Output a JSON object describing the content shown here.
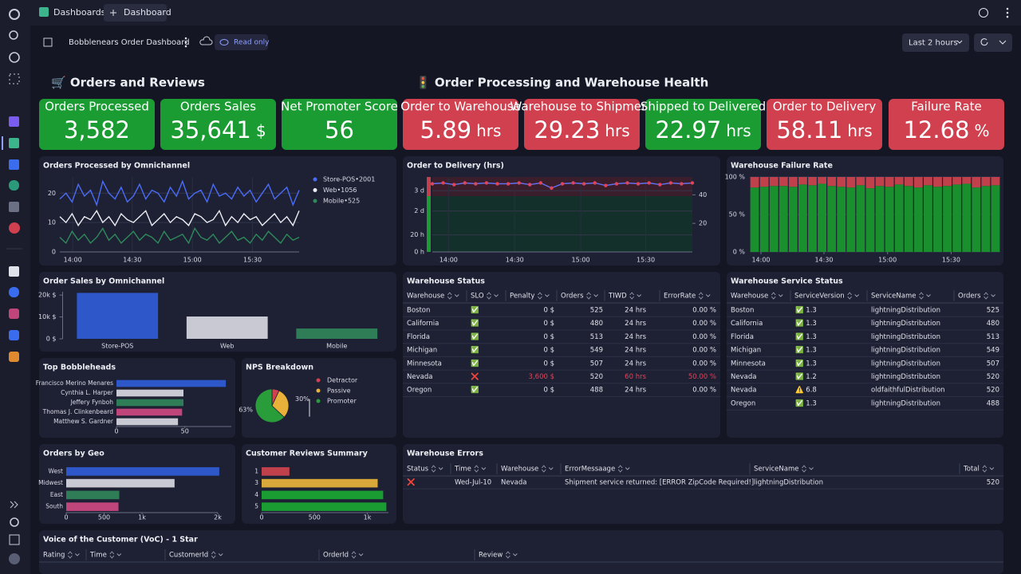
{
  "topbar": {
    "tabs": [
      "Dashboards",
      "Dashboard"
    ]
  },
  "toolbar": {
    "title": "Bobblenears Order Dashboard",
    "mode": "Read only",
    "timeframe": "Last 2 hours"
  },
  "sections": [
    "🛒 Orders and Reviews",
    "🚦 Order Processing and Warehouse Health"
  ],
  "kpis": [
    {
      "label": "Orders Processed",
      "value": "3,582",
      "color": "#1a9c33"
    },
    {
      "label": "Orders Sales",
      "value": "35,641",
      "unit": "$",
      "color": "#1a9c33"
    },
    {
      "label": "Net Promoter Score",
      "value": "56",
      "color": "#1a9c33"
    },
    {
      "label": "Order to Warehouse",
      "value": "5.89",
      "unit": "hrs",
      "color": "#d0404f"
    },
    {
      "label": "Warehouse to Shipment",
      "value": "29.23",
      "unit": "hrs",
      "color": "#d0404f"
    },
    {
      "label": "Shipped to Delivered",
      "value": "22.97",
      "unit": "hrs",
      "color": "#1a9c33"
    },
    {
      "label": "Order to Delivery",
      "value": "58.11",
      "unit": "hrs",
      "color": "#d0404f"
    },
    {
      "label": "Failure Rate",
      "value": "12.68",
      "unit": "%",
      "color": "#d0404f"
    }
  ],
  "charts": [
    {
      "type": "line",
      "title": "Orders Processed by Omnichannel",
      "grid": true,
      "legend": "right",
      "ylim": [
        0,
        25.5
      ],
      "yticks": [
        0,
        10,
        20
      ],
      "xlim": [
        0,
        39
      ],
      "xticks": [
        {
          "value": 2.1,
          "label": "14:00"
        },
        {
          "value": 11.8,
          "label": "14:30"
        },
        {
          "value": 21.6,
          "label": "15:00"
        },
        {
          "value": 31.4,
          "label": "15:30"
        }
      ],
      "series": [
        {
          "name": "Store-POS•2001",
          "color": "#4a6cf7",
          "values": [
            18,
            20,
            17,
            23,
            19,
            21,
            16,
            24,
            20,
            18,
            22,
            17,
            19,
            23,
            18,
            21,
            20,
            17,
            22,
            19,
            24,
            18,
            20,
            21,
            17,
            23,
            19,
            20,
            18,
            22,
            19,
            21,
            17,
            20,
            23,
            18,
            20,
            22,
            16,
            21
          ]
        },
        {
          "name": "Web•1056",
          "color": "#eceef4",
          "values": [
            12,
            10,
            13,
            9,
            12,
            11,
            14,
            10,
            12,
            9,
            13,
            11,
            10,
            12,
            14,
            9,
            11,
            13,
            10,
            12,
            11,
            9,
            13,
            12,
            10,
            11,
            14,
            9,
            12,
            10,
            13,
            11,
            12,
            9,
            11,
            13,
            10,
            12,
            9,
            14
          ]
        },
        {
          "name": "Mobile•525",
          "color": "#2e8a5a",
          "values": [
            5,
            3,
            7,
            4,
            6,
            3,
            5,
            8,
            4,
            6,
            3,
            5,
            7,
            4,
            6,
            5,
            3,
            7,
            4,
            5,
            6,
            3,
            8,
            5,
            4,
            6,
            3,
            5,
            7,
            4,
            5,
            3,
            6,
            4,
            7,
            5,
            3,
            6,
            4,
            5
          ]
        }
      ]
    },
    {
      "type": "line",
      "title": "Order to Delivery (hrs)",
      "grid": true,
      "ylim": [
        0,
        88
      ],
      "yticks": [
        {
          "value": 0,
          "label": "0 h"
        },
        {
          "value": 20,
          "label": "20 h"
        },
        {
          "value": 48,
          "label": "2 d"
        },
        {
          "value": 72,
          "label": "3 d"
        }
      ],
      "y2lim": [
        0,
        52.5
      ],
      "y2ticks": [
        20,
        40
      ],
      "xlim": [
        0,
        24
      ],
      "xticks": [
        {
          "value": 1.5,
          "label": "14:00"
        },
        {
          "value": 7.6,
          "label": "14:30"
        },
        {
          "value": 13.7,
          "label": "15:00"
        },
        {
          "value": 19.7,
          "label": "15:30"
        }
      ],
      "series": [
        {
          "color": "#6070f0",
          "marker_color": "#e0445a",
          "values": [
            80,
            81,
            79,
            81,
            80,
            81,
            80,
            80,
            81,
            79,
            81,
            75,
            80,
            81,
            80,
            81,
            78,
            80,
            81,
            80,
            81,
            79,
            81,
            80,
            81
          ]
        }
      ]
    },
    {
      "type": "stacked_bar",
      "title": "Warehouse Failure Rate",
      "grid": true,
      "ylim": [
        0,
        100
      ],
      "yticks": [
        {
          "value": 0,
          "label": "0 %"
        },
        {
          "value": 50,
          "label": "50 %"
        },
        {
          "value": 100,
          "label": "100 %"
        }
      ],
      "xlim": [
        -0.5,
        25.5
      ],
      "xticks": [
        {
          "value": 0.66,
          "label": "14:00"
        },
        {
          "value": 7.2,
          "label": "14:30"
        },
        {
          "value": 13.8,
          "label": "15:00"
        },
        {
          "value": 20.4,
          "label": "15:30"
        }
      ],
      "series": [
        {
          "color": "#1a8f2e",
          "values": [
            86,
            87,
            88,
            88,
            87,
            90,
            89,
            91,
            88,
            87,
            86,
            89,
            85,
            88,
            87,
            90,
            88,
            86,
            89,
            87,
            88,
            90,
            91,
            86,
            88,
            89
          ]
        },
        {
          "color": "#c0404c",
          "values": [
            14,
            13,
            12,
            12,
            13,
            10,
            11,
            9,
            12,
            13,
            14,
            11,
            15,
            12,
            13,
            10,
            12,
            14,
            11,
            13,
            12,
            10,
            9,
            14,
            12,
            11
          ]
        }
      ]
    },
    {
      "type": "bar",
      "title": "Order Sales by Omnichannel",
      "categories": [
        "Store-POS",
        "Web",
        "Mobile"
      ],
      "values": [
        21000,
        10200,
        4700
      ],
      "colors": [
        "#2e57c9",
        "#c8c9d2",
        "#2e7d57"
      ],
      "ylim": [
        0,
        21500
      ],
      "yticks": [
        {
          "value": 0,
          "label": "0 $"
        },
        {
          "value": 10000,
          "label": "10k $"
        },
        {
          "value": 20000,
          "label": "20k $"
        }
      ]
    },
    {
      "type": "hbar",
      "title": "Top Bobbleheads",
      "categories": [
        "Francisco Merino Menares",
        "Cynthia L. Harper",
        "Jeffery Fynboh",
        "Thomas J. Clinkenbeard",
        "Matthew S. Gardner"
      ],
      "values": [
        80,
        49,
        49,
        48,
        45
      ],
      "colors": [
        "#2e57c9",
        "#c8c9d2",
        "#2e7d57",
        "#c0457a",
        "#c8c9d2"
      ],
      "xlim": [
        0,
        84
      ],
      "xticks": [
        0,
        50
      ]
    },
    {
      "type": "pie",
      "title": "NPS Breakdown",
      "categories": [
        "Detractor",
        "Passive",
        "Promoter"
      ],
      "values": [
        7,
        30,
        63
      ],
      "value_labels": [
        null,
        "30%",
        "63%"
      ],
      "colors": [
        "#d0404f",
        "#e8b23a",
        "#2a9d3b"
      ],
      "legend": "right"
    },
    {
      "type": "hbar",
      "title": "Orders by Geo",
      "categories": [
        "West",
        "Midwest",
        "East",
        "South"
      ],
      "values": [
        2020,
        1430,
        700,
        690
      ],
      "colors": [
        "#2e57c9",
        "#c8c9d2",
        "#2e7d57",
        "#c0457a"
      ],
      "xlim": [
        0,
        2000
      ],
      "xticks": [
        0,
        500,
        {
          "value": 1000,
          "label": "1k"
        },
        {
          "value": 2000,
          "label": "2k"
        }
      ]
    },
    {
      "type": "hbar",
      "title": "Customer Reviews Summary",
      "categories": [
        "1",
        "3",
        "4",
        "5"
      ],
      "values": [
        263,
        1098,
        1150,
        1180
      ],
      "colors": [
        "#c0404c",
        "#d8a83a",
        "#1a9c33",
        "#1a9c33"
      ],
      "xlim": [
        0,
        1200
      ],
      "xticks": [
        0,
        500,
        {
          "value": 1000,
          "label": "1k"
        }
      ]
    }
  ],
  "tables": [
    {
      "title": "Warehouse Status",
      "columns": [
        "Warehouse",
        "SLO",
        "Penalty",
        "Orders",
        "TIWD",
        "ErrorRate"
      ],
      "rows": [
        [
          "Boston",
          "✅",
          "0 $",
          "525",
          "24 hrs",
          "0.00 %"
        ],
        [
          "California",
          "✅",
          "0 $",
          "480",
          "24 hrs",
          "0.00 %"
        ],
        [
          "Florida",
          "✅",
          "0 $",
          "513",
          "24 hrs",
          "0.00 %"
        ],
        [
          "Michigan",
          "✅",
          "0 $",
          "549",
          "24 hrs",
          "0.00 %"
        ],
        [
          "Minnesota",
          "✅",
          "0 $",
          "507",
          "24 hrs",
          "0.00 %"
        ],
        [
          "Nevada",
          "❌",
          "3,600 $",
          "520",
          "60 hrs",
          "50.00 %"
        ],
        [
          "Oregon",
          "✅",
          "0 $",
          "488",
          "24 hrs",
          "0.00 %"
        ]
      ],
      "highlight_cells": [
        [
          5,
          2
        ],
        [
          5,
          4
        ],
        [
          5,
          5
        ]
      ],
      "highlight_color": "#e0445a"
    },
    {
      "title": "Warehouse Service Status",
      "columns": [
        "Warehouse",
        "ServiceVersion",
        "ServiceName",
        "Orders"
      ],
      "rows": [
        [
          "Boston",
          "✅ 1.3",
          "lightningDistribution",
          "525"
        ],
        [
          "California",
          "✅ 1.3",
          "lightningDistribution",
          "480"
        ],
        [
          "Florida",
          "✅ 1.3",
          "lightningDistribution",
          "513"
        ],
        [
          "Michigan",
          "✅ 1.3",
          "lightningDistribution",
          "549"
        ],
        [
          "Minnesota",
          "✅ 1.3",
          "lightningDistribution",
          "507"
        ],
        [
          "Nevada",
          "✅ 1.2",
          "lightningDistribution",
          "520"
        ],
        [
          "Nevada",
          "⚠️ 6.8",
          "oldfaithfulDistribution",
          "520"
        ],
        [
          "Oregon",
          "✅ 1.3",
          "lightningDistribution",
          "488"
        ]
      ]
    },
    {
      "title": "Warehouse Errors",
      "columns": [
        "Status",
        "Time",
        "Warehouse",
        "ErrorMessaage",
        "ServiceName",
        "Total"
      ],
      "rows": [
        [
          "❌",
          "Wed-Jul-10",
          "Nevada",
          "Shipment service returned: [ERROR ZipCode Required!]",
          "lightningDistribution",
          "520"
        ]
      ]
    },
    {
      "title": "Voice of the Customer (VoC) - 1 Star",
      "columns": [
        "Rating",
        "Time",
        "CustomerId",
        "OrderId",
        "Review"
      ],
      "rows": []
    }
  ]
}
